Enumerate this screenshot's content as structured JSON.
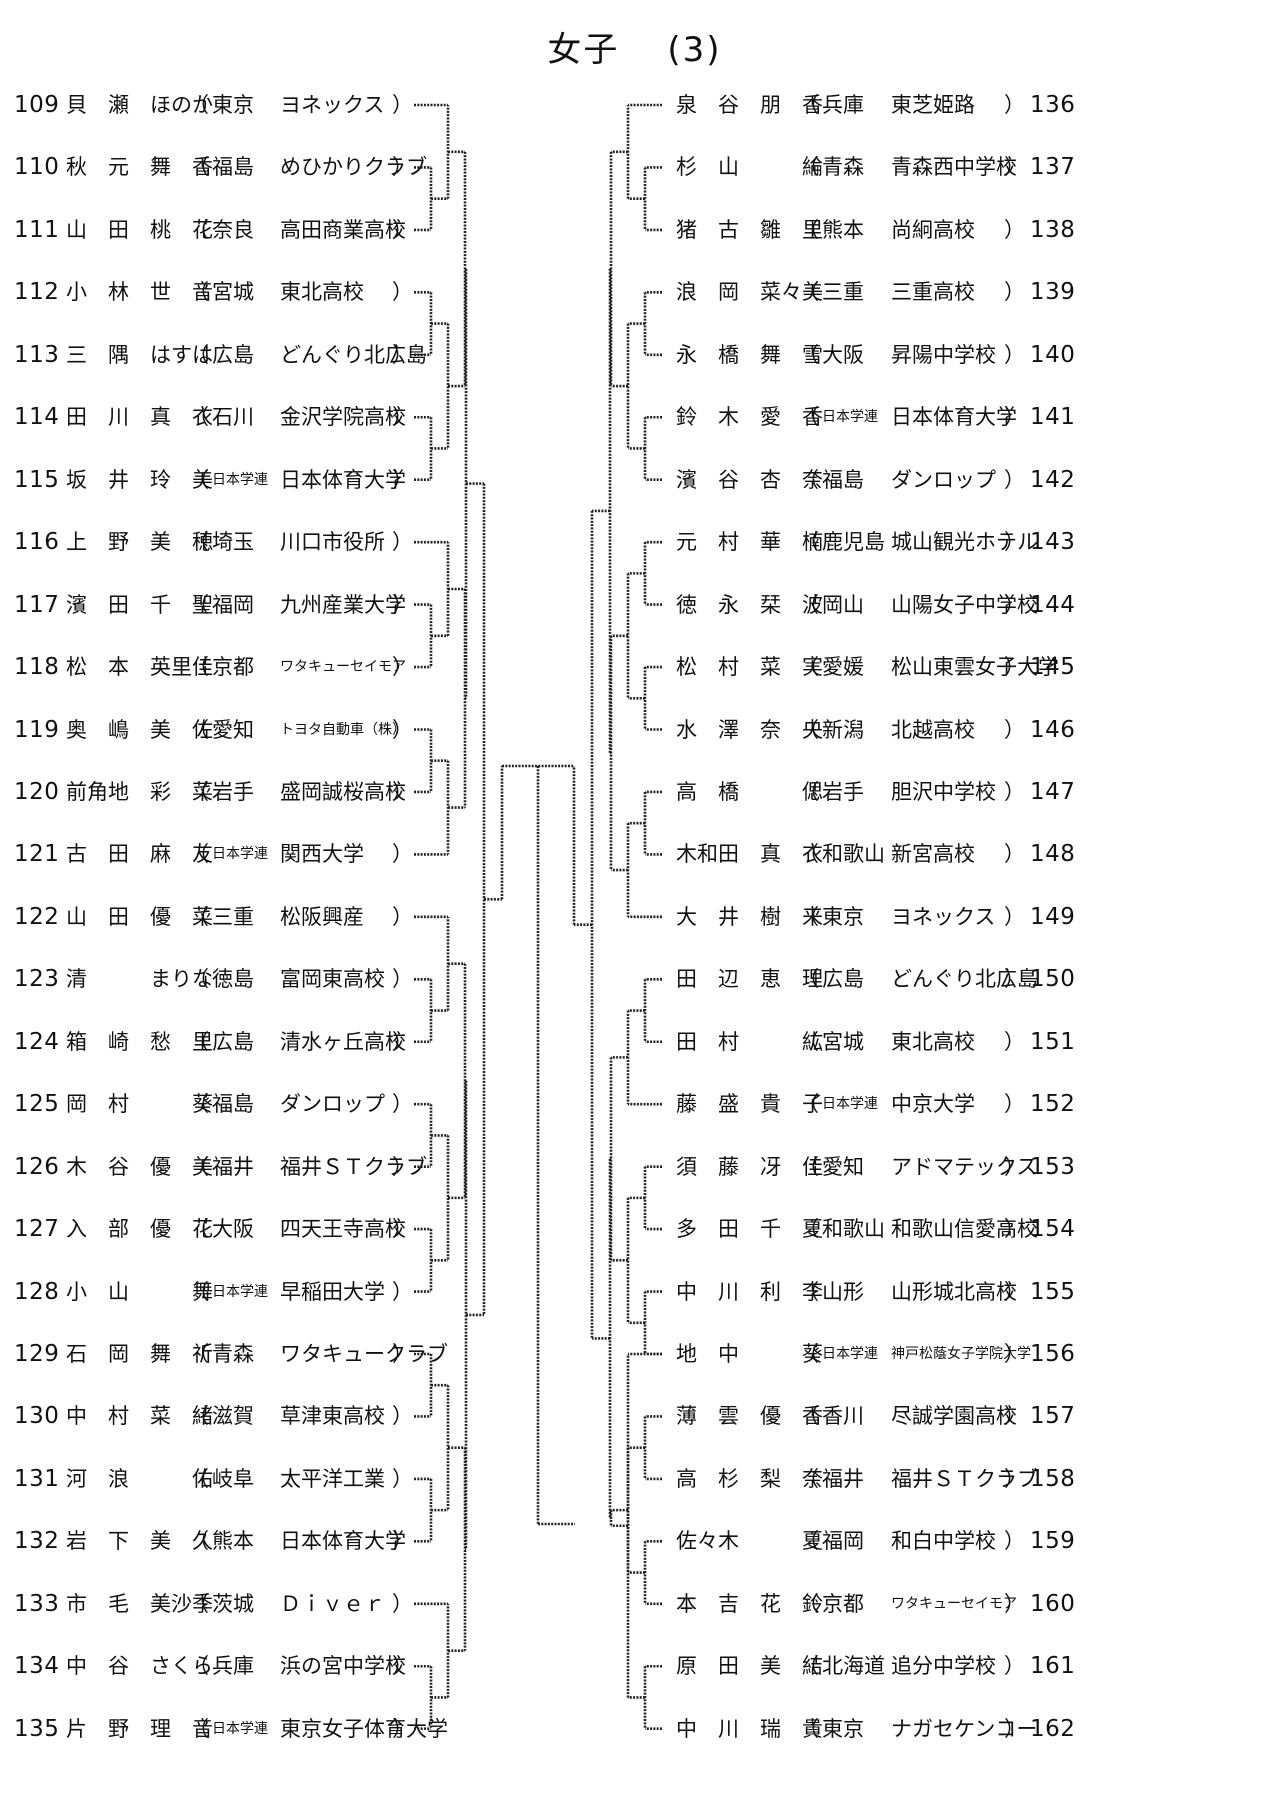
{
  "title": {
    "main": "女子",
    "sub": "(3)"
  },
  "left": [
    {
      "no": "109",
      "name": [
        "貝",
        "瀬",
        "ほのか"
      ],
      "pref": "東京",
      "club": "ヨネックス"
    },
    {
      "no": "110",
      "name": [
        "秋",
        "元",
        "舞",
        "香"
      ],
      "pref": "福島",
      "club": "めひかりクラブ"
    },
    {
      "no": "111",
      "name": [
        "山",
        "田",
        "桃",
        "花"
      ],
      "pref": "奈良",
      "club": "高田商業高校"
    },
    {
      "no": "112",
      "name": [
        "小",
        "林",
        "世",
        "音"
      ],
      "pref": "宮城",
      "club": "東北高校"
    },
    {
      "no": "113",
      "name": [
        "三",
        "隅",
        "はすは"
      ],
      "pref": "広島",
      "club": "どんぐり北広島"
    },
    {
      "no": "114",
      "name": [
        "田",
        "川",
        "真",
        "衣"
      ],
      "pref": "石川",
      "club": "金沢学院高校"
    },
    {
      "no": "115",
      "name": [
        "坂",
        "井",
        "玲",
        "美"
      ],
      "pref": "日本学連",
      "club": "日本体育大学"
    },
    {
      "no": "116",
      "name": [
        "上",
        "野",
        "美",
        "穂"
      ],
      "pref": "埼玉",
      "club": "川口市役所"
    },
    {
      "no": "117",
      "name": [
        "濱",
        "田",
        "千",
        "聖"
      ],
      "pref": "福岡",
      "club": "九州産業大学"
    },
    {
      "no": "118",
      "name": [
        "松",
        "本",
        "英里佳"
      ],
      "pref": "京都",
      "club": "ワタキューセイモア"
    },
    {
      "no": "119",
      "name": [
        "奥",
        "嶋",
        "美",
        "佐"
      ],
      "pref": "愛知",
      "club": "トヨタ自動車（株）"
    },
    {
      "no": "120",
      "name": [
        "前角地",
        "彩",
        "菜"
      ],
      "pref": "岩手",
      "club": "盛岡誠桜高校"
    },
    {
      "no": "121",
      "name": [
        "古",
        "田",
        "麻",
        "友"
      ],
      "pref": "日本学連",
      "club": "関西大学"
    },
    {
      "no": "122",
      "name": [
        "山",
        "田",
        "優",
        "菜"
      ],
      "pref": "三重",
      "club": "松阪興産"
    },
    {
      "no": "123",
      "name": [
        "清",
        "",
        "まりな"
      ],
      "pref": "徳島",
      "club": "富岡東高校"
    },
    {
      "no": "124",
      "name": [
        "箱",
        "崎",
        "愁",
        "里"
      ],
      "pref": "広島",
      "club": "清水ヶ丘高校"
    },
    {
      "no": "125",
      "name": [
        "岡",
        "村",
        "",
        "葵"
      ],
      "pref": "福島",
      "club": "ダンロップ"
    },
    {
      "no": "126",
      "name": [
        "木",
        "谷",
        "優",
        "美"
      ],
      "pref": "福井",
      "club": "福井ＳＴクラブ"
    },
    {
      "no": "127",
      "name": [
        "入",
        "部",
        "優",
        "花"
      ],
      "pref": "大阪",
      "club": "四天王寺高校"
    },
    {
      "no": "128",
      "name": [
        "小",
        "山",
        "",
        "舞"
      ],
      "pref": "日本学連",
      "club": "早稲田大学"
    },
    {
      "no": "129",
      "name": [
        "石",
        "岡",
        "舞",
        "祈"
      ],
      "pref": "青森",
      "club": "ワタキュークラブ"
    },
    {
      "no": "130",
      "name": [
        "中",
        "村",
        "菜",
        "緒"
      ],
      "pref": "滋賀",
      "club": "草津東高校"
    },
    {
      "no": "131",
      "name": [
        "河",
        "浪",
        "",
        "佑"
      ],
      "pref": "岐阜",
      "club": "太平洋工業"
    },
    {
      "no": "132",
      "name": [
        "岩",
        "下",
        "美",
        "久"
      ],
      "pref": "熊本",
      "club": "日本体育大学"
    },
    {
      "no": "133",
      "name": [
        "市",
        "毛",
        "美沙季"
      ],
      "pref": "茨城",
      "club": "Ｄｉｖｅｒ"
    },
    {
      "no": "134",
      "name": [
        "中",
        "谷",
        "さくら"
      ],
      "pref": "兵庫",
      "club": "浜の宮中学校"
    },
    {
      "no": "135",
      "name": [
        "片",
        "野",
        "理",
        "音"
      ],
      "pref": "日本学連",
      "club": "東京女子体育大学"
    }
  ],
  "right": [
    {
      "no": "136",
      "name": [
        "泉",
        "谷",
        "朋",
        "香"
      ],
      "pref": "兵庫",
      "club": "東芝姫路"
    },
    {
      "no": "137",
      "name": [
        "杉",
        "山",
        "",
        "綸"
      ],
      "pref": "青森",
      "club": "青森西中学校"
    },
    {
      "no": "138",
      "name": [
        "猪",
        "古",
        "雛",
        "里"
      ],
      "pref": "熊本",
      "club": "尚絅高校"
    },
    {
      "no": "139",
      "name": [
        "浪",
        "岡",
        "菜々美"
      ],
      "pref": "三重",
      "club": "三重高校"
    },
    {
      "no": "140",
      "name": [
        "永",
        "橋",
        "舞",
        "雪"
      ],
      "pref": "大阪",
      "club": "昇陽中学校"
    },
    {
      "no": "141",
      "name": [
        "鈴",
        "木",
        "愛",
        "香"
      ],
      "pref": "日本学連",
      "club": "日本体育大学"
    },
    {
      "no": "142",
      "name": [
        "濱",
        "谷",
        "杏",
        "奈"
      ],
      "pref": "福島",
      "club": "ダンロップ"
    },
    {
      "no": "143",
      "name": [
        "元",
        "村",
        "華",
        "楠"
      ],
      "pref": "鹿児島",
      "club": "城山観光ホテル"
    },
    {
      "no": "144",
      "name": [
        "徳",
        "永",
        "栞",
        "波"
      ],
      "pref": "岡山",
      "club": "山陽女子中学校"
    },
    {
      "no": "145",
      "name": [
        "松",
        "村",
        "菜",
        "実"
      ],
      "pref": "愛媛",
      "club": "松山東雲女子大学"
    },
    {
      "no": "146",
      "name": [
        "水",
        "澤",
        "奈",
        "央"
      ],
      "pref": "新潟",
      "club": "北越高校"
    },
    {
      "no": "147",
      "name": [
        "高",
        "橋",
        "",
        "偲"
      ],
      "pref": "岩手",
      "club": "胆沢中学校"
    },
    {
      "no": "148",
      "name": [
        "木和田",
        "真",
        "衣"
      ],
      "pref": "和歌山",
      "club": "新宮高校"
    },
    {
      "no": "149",
      "name": [
        "大",
        "井",
        "樹",
        "来"
      ],
      "pref": "東京",
      "club": "ヨネックス"
    },
    {
      "no": "150",
      "name": [
        "田",
        "辺",
        "恵",
        "理"
      ],
      "pref": "広島",
      "club": "どんぐり北広島"
    },
    {
      "no": "151",
      "name": [
        "田",
        "村",
        "",
        "紘"
      ],
      "pref": "宮城",
      "club": "東北高校"
    },
    {
      "no": "152",
      "name": [
        "藤",
        "盛",
        "貴",
        "子"
      ],
      "pref": "日本学連",
      "club": "中京大学"
    },
    {
      "no": "153",
      "name": [
        "須",
        "藤",
        "冴",
        "佳"
      ],
      "pref": "愛知",
      "club": "アドマテックス"
    },
    {
      "no": "154",
      "name": [
        "多",
        "田",
        "千",
        "夏"
      ],
      "pref": "和歌山",
      "club": "和歌山信愛高校"
    },
    {
      "no": "155",
      "name": [
        "中",
        "川",
        "利",
        "李"
      ],
      "pref": "山形",
      "club": "山形城北高校"
    },
    {
      "no": "156",
      "name": [
        "地",
        "中",
        "",
        "葵"
      ],
      "pref": "日本学連",
      "club": "神戸松蔭女子学院大学"
    },
    {
      "no": "157",
      "name": [
        "薄",
        "雲",
        "優",
        "香"
      ],
      "pref": "香川",
      "club": "尽誠学園高校"
    },
    {
      "no": "158",
      "name": [
        "高",
        "杉",
        "梨",
        "奈"
      ],
      "pref": "福井",
      "club": "福井ＳＴクラブ"
    },
    {
      "no": "159",
      "name": [
        "佐々木",
        "",
        "夏"
      ],
      "pref": "福岡",
      "club": "和白中学校"
    },
    {
      "no": "160",
      "name": [
        "本",
        "吉",
        "花",
        "鈴"
      ],
      "pref": "京都",
      "club": "ワタキューセイモア"
    },
    {
      "no": "161",
      "name": [
        "原",
        "田",
        "美",
        "結"
      ],
      "pref": "北海道",
      "club": "追分中学校"
    },
    {
      "no": "162",
      "name": [
        "中",
        "川",
        "瑞",
        "貴"
      ],
      "pref": "東京",
      "club": "ナガセケンコー"
    }
  ],
  "paren_open": "（",
  "paren_close": "）"
}
